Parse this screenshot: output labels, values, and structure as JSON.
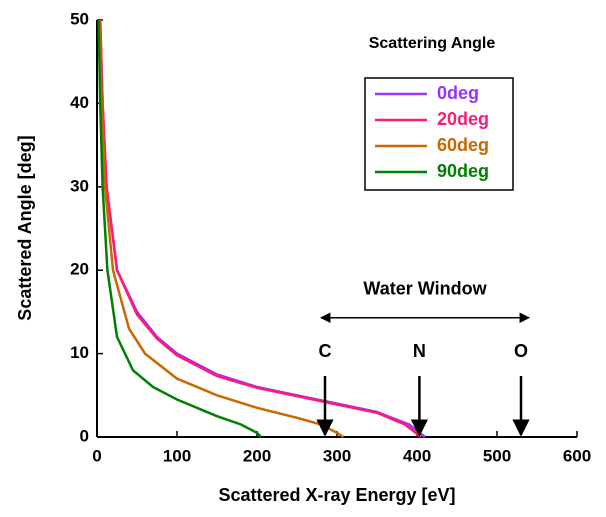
{
  "chart_data": {
    "type": "line",
    "xlabel": "Scattered X-ray Energy [eV]",
    "ylabel": "Scattered Angle [deg]",
    "legend_title": "Scattering Angle",
    "legend": "upper right",
    "xlim": [
      0,
      600
    ],
    "xticks": [
      0,
      100,
      200,
      300,
      400,
      500,
      600
    ],
    "ylim": [
      0,
      50
    ],
    "yticks": [
      0,
      10,
      20,
      30,
      40,
      50
    ],
    "series": [
      {
        "name": "0deg",
        "color": "#9933ff",
        "x": [
          4,
          7,
          12,
          25,
          50,
          75,
          100,
          150,
          200,
          250,
          300,
          350,
          390,
          410
        ],
        "y": [
          50,
          40,
          30,
          20,
          15,
          12,
          10,
          7.5,
          6,
          5,
          4,
          3,
          1.5,
          0
        ]
      },
      {
        "name": "20deg",
        "color": "#ff1a75",
        "x": [
          4,
          7,
          12,
          25,
          50,
          75,
          100,
          150,
          200,
          250,
          300,
          350,
          385,
          405
        ],
        "y": [
          50,
          40,
          30,
          20,
          14.7,
          11.8,
          9.8,
          7.3,
          5.9,
          4.9,
          3.9,
          2.9,
          1.5,
          0
        ]
      },
      {
        "name": "60deg",
        "color": "#cc6600",
        "x": [
          3,
          6,
          10,
          20,
          40,
          60,
          100,
          150,
          200,
          250,
          280,
          300,
          308
        ],
        "y": [
          50,
          40,
          30,
          20,
          13,
          10,
          7,
          5,
          3.5,
          2.3,
          1.5,
          0.5,
          0
        ]
      },
      {
        "name": "90deg",
        "color": "#008000",
        "x": [
          2,
          4,
          7,
          13,
          25,
          45,
          70,
          100,
          150,
          180,
          200,
          205
        ],
        "y": [
          50,
          40,
          30,
          20,
          12,
          8,
          6,
          4.5,
          2.5,
          1.5,
          0.5,
          0
        ]
      }
    ],
    "window": {
      "text": "Water Window",
      "x": [
        280,
        540
      ],
      "y": 14.3
    },
    "edges": [
      {
        "text": "C",
        "x": 285
      },
      {
        "text": "N",
        "x": 403
      },
      {
        "text": "O",
        "x": 530
      }
    ]
  }
}
